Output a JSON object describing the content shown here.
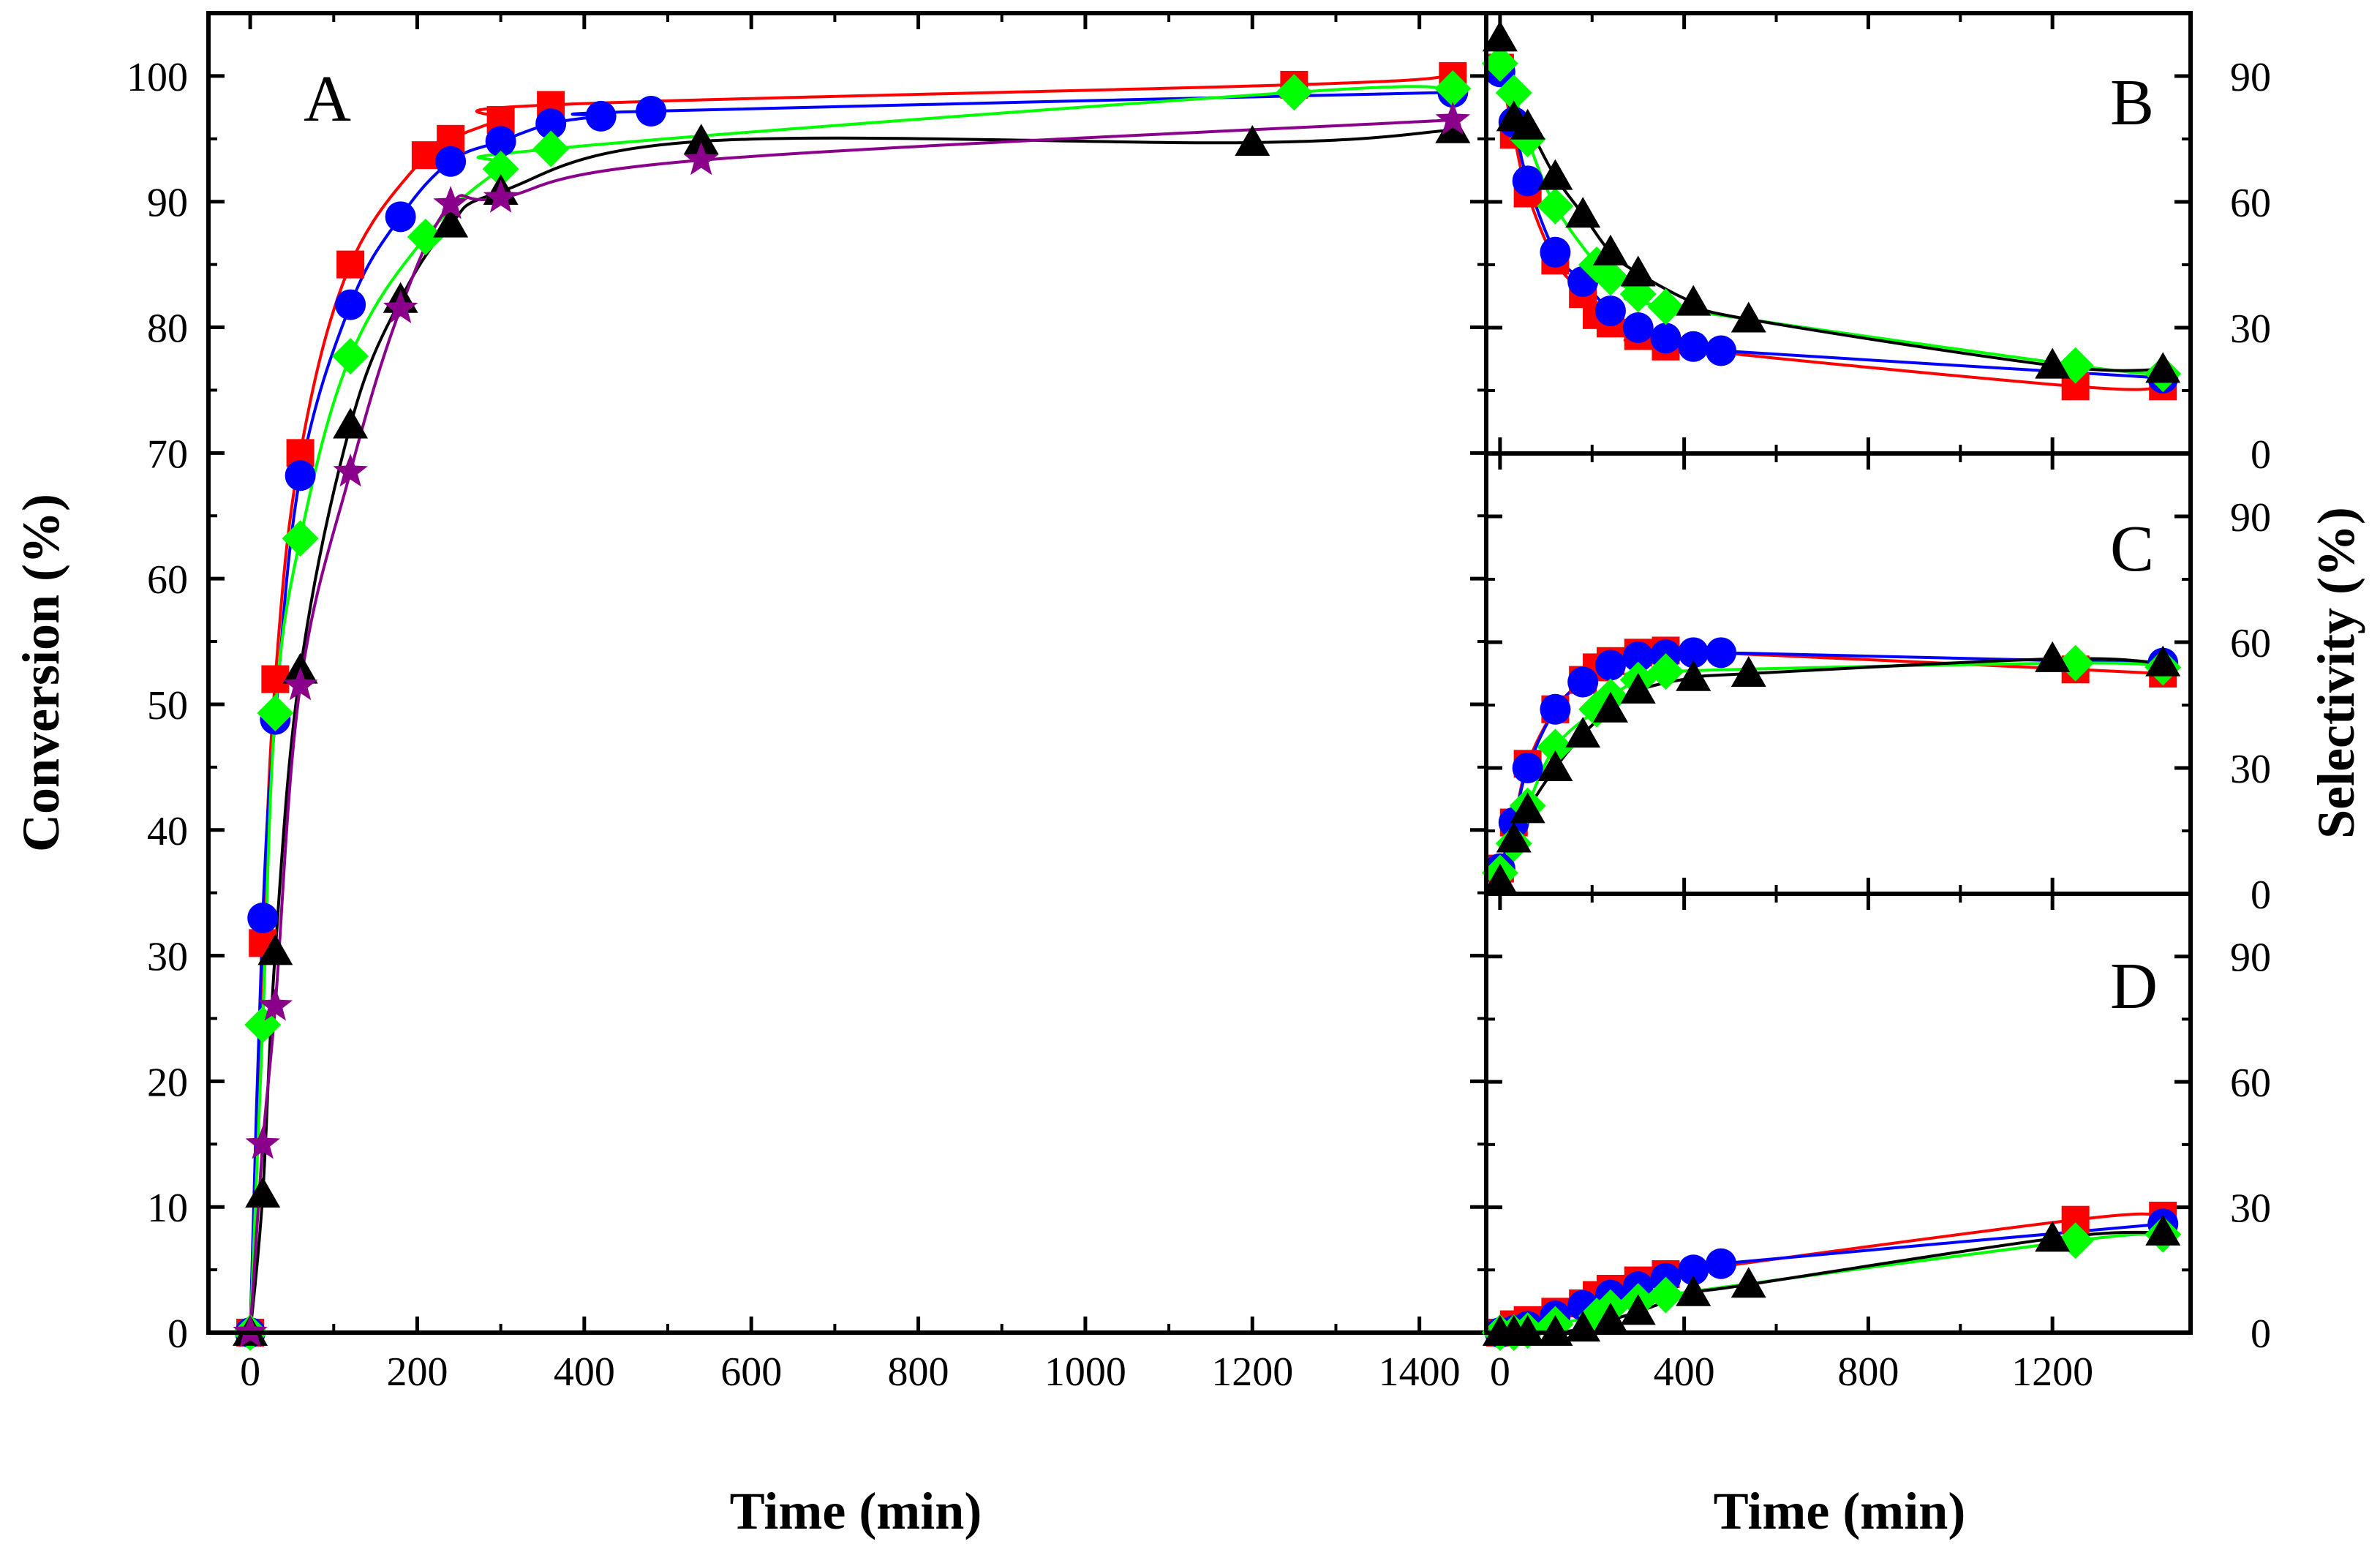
{
  "chart_data": [
    {
      "panel": "A",
      "type": "scatter",
      "title": "A",
      "xlabel": "Time (min)",
      "ylabel": "Conversion (%)",
      "xlim": [
        -50,
        1480
      ],
      "ylim": [
        0,
        105
      ],
      "xticks": [
        0,
        200,
        400,
        600,
        800,
        1000,
        1200,
        1400
      ],
      "yticks": [
        0,
        10,
        20,
        30,
        40,
        50,
        60,
        70,
        80,
        90,
        100
      ],
      "series": [
        {
          "name": "square",
          "color": "#ff0000",
          "marker": "square",
          "x": [
            0,
            15,
            30,
            60,
            120,
            210,
            240,
            300,
            360,
            1250,
            1440
          ],
          "y": [
            0,
            31,
            52,
            70,
            85,
            93.7,
            95,
            96.5,
            97.7,
            99.3,
            100
          ]
        },
        {
          "name": "circle",
          "color": "#0000ff",
          "marker": "circle",
          "x": [
            0,
            15,
            30,
            60,
            120,
            180,
            240,
            300,
            360,
            420,
            480,
            1440
          ],
          "y": [
            0,
            33,
            48.8,
            68.2,
            81.8,
            88.8,
            93.2,
            94.8,
            96.2,
            96.8,
            97.2,
            98.7
          ]
        },
        {
          "name": "diamond",
          "color": "#00ff00",
          "marker": "diamond",
          "x": [
            0,
            15,
            30,
            60,
            120,
            210,
            300,
            360,
            1250,
            1440
          ],
          "y": [
            0,
            24.5,
            49.3,
            63.2,
            77.7,
            87.2,
            92.6,
            94.2,
            98.7,
            99
          ]
        },
        {
          "name": "triangle",
          "color": "#000000",
          "marker": "triangle",
          "x": [
            0,
            15,
            30,
            60,
            120,
            180,
            240,
            300,
            540,
            1200,
            1440
          ],
          "y": [
            0,
            11,
            30.3,
            52.7,
            72.2,
            82.2,
            88.2,
            90.8,
            94.8,
            94.7,
            95.7
          ]
        },
        {
          "name": "star",
          "color": "#8b008b",
          "marker": "star",
          "x": [
            0,
            15,
            30,
            60,
            120,
            180,
            240,
            300,
            540,
            1440
          ],
          "y": [
            0,
            15,
            26,
            51.5,
            68.5,
            81.5,
            89.8,
            90.3,
            93.3,
            96.5
          ]
        }
      ]
    },
    {
      "panel": "B",
      "type": "scatter",
      "title": "B",
      "xlabel": "Time (min)",
      "ylabel": "Selectivity (%)",
      "xlim": [
        -30,
        1500
      ],
      "ylim": [
        0,
        105
      ],
      "xticks": [
        0,
        400,
        800,
        1200
      ],
      "yticks": [
        0,
        30,
        60,
        90
      ],
      "series": [
        {
          "name": "square",
          "color": "#ff0000",
          "marker": "square",
          "x": [
            0,
            30,
            60,
            120,
            180,
            210,
            240,
            300,
            360,
            1250,
            1440
          ],
          "y": [
            92,
            76,
            62,
            46,
            38,
            33,
            31,
            28,
            25.5,
            16,
            16
          ]
        },
        {
          "name": "circle",
          "color": "#0000ff",
          "marker": "circle",
          "x": [
            0,
            30,
            60,
            120,
            180,
            240,
            300,
            360,
            420,
            480,
            1440
          ],
          "y": [
            91,
            79,
            65,
            48,
            41,
            34,
            30,
            27.5,
            25.5,
            24.5,
            18
          ]
        },
        {
          "name": "diamond",
          "color": "#00ff00",
          "marker": "diamond",
          "x": [
            0,
            30,
            60,
            120,
            210,
            240,
            300,
            360,
            1250,
            1440
          ],
          "y": [
            93,
            86,
            75,
            59,
            45,
            42,
            38,
            35,
            21,
            19
          ]
        },
        {
          "name": "triangle",
          "color": "#000000",
          "marker": "triangle",
          "x": [
            0,
            30,
            60,
            120,
            180,
            240,
            300,
            420,
            540,
            1200,
            1440
          ],
          "y": [
            99,
            80,
            78,
            66,
            57,
            48,
            43,
            36,
            32,
            21,
            20
          ]
        }
      ]
    },
    {
      "panel": "C",
      "type": "scatter",
      "title": "C",
      "xlabel": "Time (min)",
      "ylabel": "Selectivity (%)",
      "xlim": [
        -30,
        1500
      ],
      "ylim": [
        0,
        105
      ],
      "xticks": [
        0,
        400,
        800,
        1200
      ],
      "yticks": [
        0,
        30,
        60,
        90
      ],
      "series": [
        {
          "name": "square",
          "color": "#ff0000",
          "marker": "square",
          "x": [
            0,
            30,
            60,
            120,
            180,
            210,
            240,
            300,
            360,
            1250,
            1440
          ],
          "y": [
            6,
            17,
            31,
            44,
            51,
            54,
            55.5,
            57.5,
            58,
            53.5,
            52.5
          ]
        },
        {
          "name": "circle",
          "color": "#0000ff",
          "marker": "circle",
          "x": [
            0,
            30,
            60,
            120,
            180,
            240,
            300,
            360,
            420,
            480,
            1440
          ],
          "y": [
            6,
            17,
            30,
            44,
            50.5,
            54.5,
            56.5,
            57,
            57.5,
            57.5,
            55
          ]
        },
        {
          "name": "diamond",
          "color": "#00ff00",
          "marker": "diamond",
          "x": [
            0,
            30,
            60,
            120,
            210,
            240,
            300,
            360,
            1250,
            1440
          ],
          "y": [
            5,
            12,
            21,
            35,
            44,
            47,
            51,
            53,
            55,
            54
          ]
        },
        {
          "name": "triangle",
          "color": "#000000",
          "marker": "triangle",
          "x": [
            0,
            30,
            60,
            120,
            180,
            240,
            300,
            420,
            540,
            1200,
            1440
          ],
          "y": [
            3,
            13,
            20,
            30,
            38,
            44,
            48.5,
            51.5,
            52.5,
            56,
            55
          ]
        }
      ]
    },
    {
      "panel": "D",
      "type": "scatter",
      "title": "D",
      "xlabel": "Time (min)",
      "ylabel": "Selectivity (%)",
      "xlim": [
        -30,
        1500
      ],
      "ylim": [
        0,
        105
      ],
      "xticks": [
        0,
        400,
        800,
        1200
      ],
      "yticks": [
        0,
        30,
        60,
        90
      ],
      "series": [
        {
          "name": "square",
          "color": "#ff0000",
          "marker": "square",
          "x": [
            0,
            30,
            60,
            120,
            180,
            210,
            240,
            300,
            360,
            1250,
            1440
          ],
          "y": [
            0,
            2,
            3,
            5,
            7,
            9,
            10.5,
            12.5,
            14,
            27,
            28
          ]
        },
        {
          "name": "circle",
          "color": "#0000ff",
          "marker": "circle",
          "x": [
            0,
            30,
            60,
            120,
            180,
            240,
            300,
            360,
            420,
            480,
            1440
          ],
          "y": [
            0,
            0.5,
            1.5,
            4,
            6.5,
            9,
            11,
            13,
            15,
            16.5,
            26
          ]
        },
        {
          "name": "diamond",
          "color": "#00ff00",
          "marker": "diamond",
          "x": [
            0,
            30,
            60,
            120,
            210,
            240,
            300,
            360,
            1250,
            1440
          ],
          "y": [
            0,
            0,
            0.5,
            2,
            4,
            6,
            7.5,
            9,
            22,
            23.5
          ]
        },
        {
          "name": "triangle",
          "color": "#000000",
          "marker": "triangle",
          "x": [
            0,
            30,
            60,
            120,
            180,
            240,
            300,
            420,
            540,
            1200,
            1440
          ],
          "y": [
            0,
            0,
            0,
            0,
            1,
            3,
            5,
            9.5,
            11.5,
            22.5,
            24
          ]
        }
      ]
    }
  ]
}
